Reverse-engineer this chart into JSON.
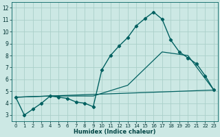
{
  "xlabel": "Humidex (Indice chaleur)",
  "background_color": "#cce8e4",
  "grid_color": "#aacfc9",
  "line_color": "#006060",
  "xlim": [
    -0.5,
    23.5
  ],
  "ylim": [
    2.5,
    12.5
  ],
  "x_ticks": [
    0,
    1,
    2,
    3,
    4,
    5,
    6,
    7,
    8,
    9,
    10,
    11,
    12,
    13,
    14,
    15,
    16,
    17,
    18,
    19,
    20,
    21,
    22,
    23
  ],
  "y_ticks": [
    3,
    4,
    5,
    6,
    7,
    8,
    9,
    10,
    11,
    12
  ],
  "curve1_x": [
    0,
    1,
    2,
    3,
    4,
    5,
    6,
    7,
    8,
    9,
    10,
    11,
    12,
    13,
    14,
    15,
    16,
    17,
    18,
    19,
    20,
    21,
    22,
    23
  ],
  "curve1_y": [
    4.5,
    3.0,
    3.5,
    4.0,
    4.6,
    4.5,
    4.4,
    4.1,
    4.0,
    3.7,
    6.8,
    8.0,
    8.8,
    9.5,
    10.5,
    11.1,
    11.65,
    11.05,
    9.3,
    8.3,
    7.8,
    7.3,
    6.3,
    5.1
  ],
  "curve2_x": [
    0,
    23
  ],
  "curve2_y": [
    4.5,
    5.1
  ],
  "curve3_x": [
    0,
    4,
    9,
    13,
    17,
    20,
    23
  ],
  "curve3_y": [
    4.5,
    4.6,
    4.6,
    5.5,
    8.3,
    8.0,
    5.1
  ]
}
